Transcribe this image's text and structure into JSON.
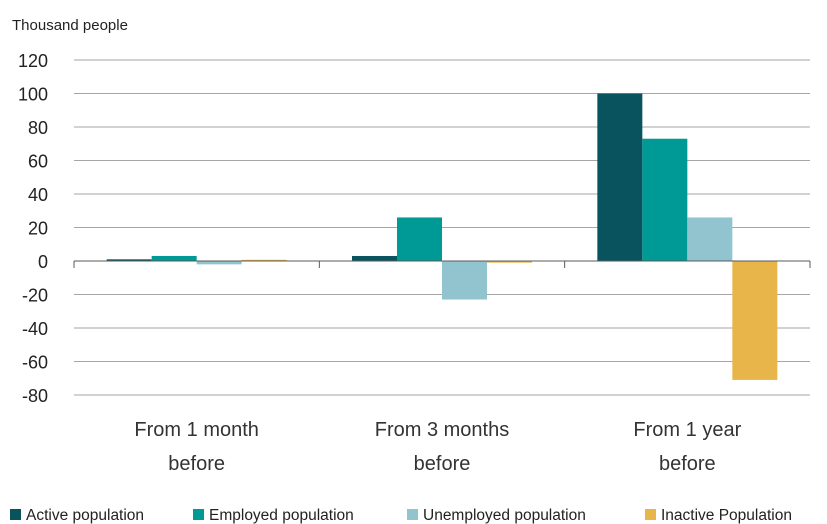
{
  "chart_data": {
    "type": "bar",
    "unit_label": "Thousand people",
    "categories": [
      [
        "From 1 month",
        "before"
      ],
      [
        "From 3 months",
        "before"
      ],
      [
        "From 1 year",
        "before"
      ]
    ],
    "series": [
      {
        "name": "Active population",
        "color": "#08535e",
        "values": [
          1,
          3,
          100
        ]
      },
      {
        "name": "Employed population",
        "color": "#009a96",
        "values": [
          3,
          26,
          73
        ]
      },
      {
        "name": "Unemployed population",
        "color": "#92c4d0",
        "values": [
          -2,
          -23,
          26
        ]
      },
      {
        "name": "Inactive Population",
        "color": "#e8b54a",
        "values": [
          0,
          -1,
          -71
        ]
      }
    ],
    "ylim": [
      -80,
      120
    ],
    "yticks": [
      120,
      100,
      80,
      60,
      40,
      20,
      0,
      -20,
      -40,
      -60,
      -80
    ],
    "grid": true,
    "legend_position": "bottom"
  }
}
